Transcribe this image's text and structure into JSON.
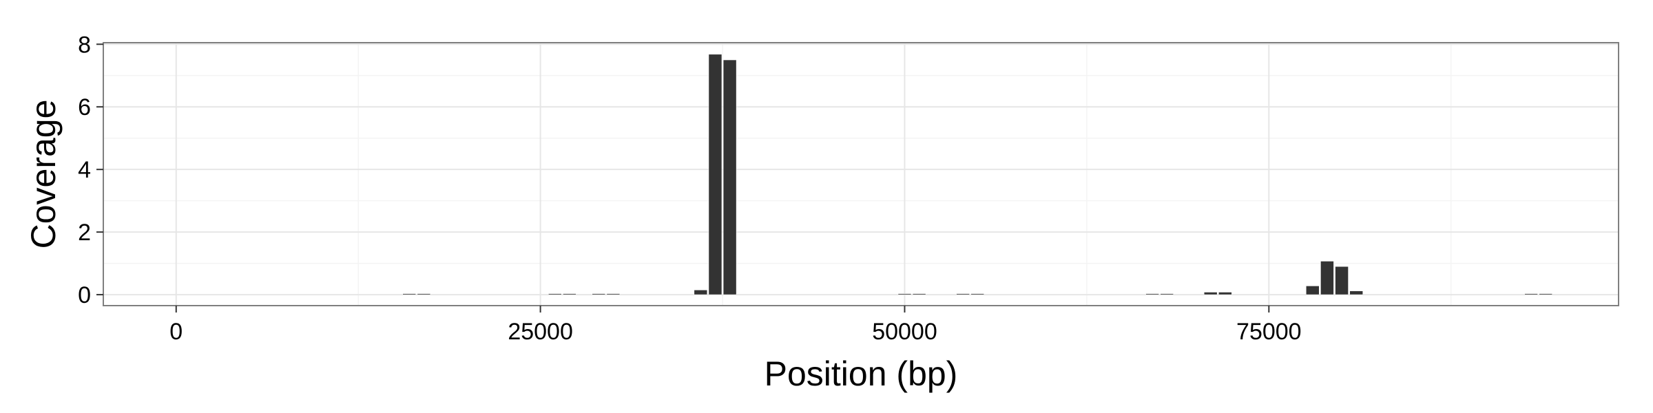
{
  "chart_data": {
    "type": "bar",
    "title": "",
    "xlabel": "Position (bp)",
    "ylabel": "Coverage",
    "xlim": [
      -5000,
      99000
    ],
    "ylim": [
      -0.35,
      8.05
    ],
    "x_ticks": [
      0,
      25000,
      50000,
      75000
    ],
    "x_tick_labels": [
      "0",
      "25000",
      "50000",
      "75000"
    ],
    "y_ticks": [
      0,
      2,
      4,
      6,
      8
    ],
    "y_tick_labels": [
      "0",
      "2",
      "4",
      "6",
      "8"
    ],
    "bin_width": 1000,
    "bar_color": "#333333",
    "grid": true,
    "legend": "none",
    "x": [
      16000,
      17000,
      26000,
      27000,
      29000,
      30000,
      36000,
      37000,
      38000,
      50000,
      51000,
      54000,
      55000,
      67000,
      68000,
      71000,
      72000,
      78000,
      79000,
      80000,
      81000,
      93000,
      94000
    ],
    "values": [
      0.01,
      0.01,
      0.02,
      0.02,
      0.01,
      0.01,
      0.15,
      7.68,
      7.5,
      0.02,
      0.02,
      0.02,
      0.02,
      0.01,
      0.01,
      0.08,
      0.08,
      0.28,
      1.07,
      0.9,
      0.12,
      0.01,
      0.01
    ]
  }
}
